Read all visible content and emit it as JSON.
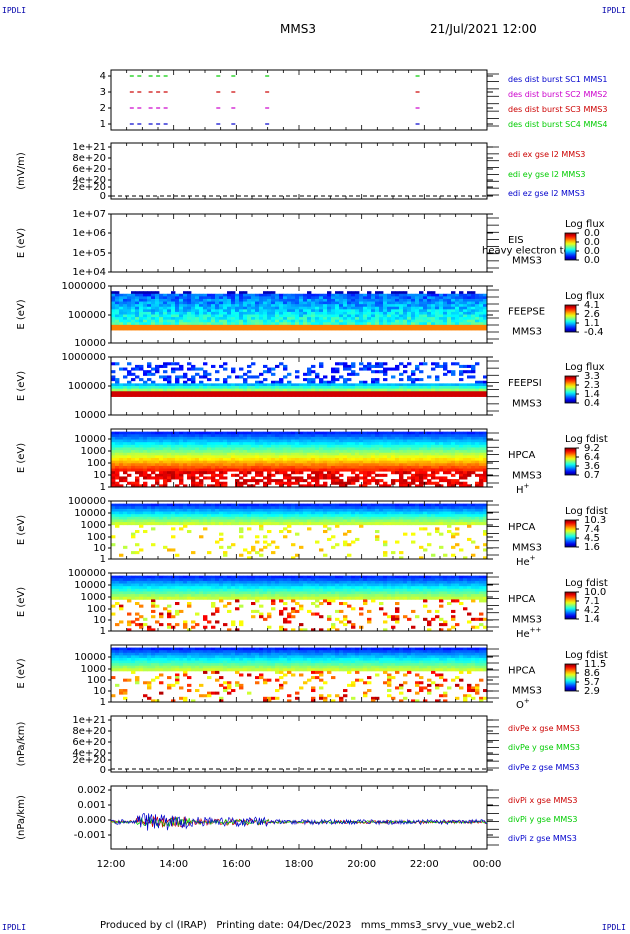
{
  "header": {
    "corner_tl": "IPDLI",
    "corner_tr": "IPDLI",
    "corner_bl": "IPDLI",
    "corner_br": "IPDLI",
    "title": "MMS3",
    "datetime": "21/Jul/2021 12:00"
  },
  "footer": {
    "text": "Produced by cl (IRAP)   Printing date: 04/Dec/2023   mms_mms3_srvy_vue_web2.cl"
  },
  "colors": {
    "red": "#cc0000",
    "green": "#00cc00",
    "blue": "#0000cc",
    "magenta": "#cc00cc",
    "orange_band": "#ff9900"
  },
  "chart_data": {
    "type": "stacked-timeseries",
    "x_ticks": [
      "12:00",
      "14:00",
      "16:00",
      "18:00",
      "20:00",
      "22:00",
      "00:00"
    ],
    "panels": [
      {
        "id": "burst",
        "type": "line",
        "y_ticks": [
          "4",
          "3",
          "2",
          "1"
        ],
        "legend": [
          {
            "label": "des dist burst SC1 MMS1",
            "color": "#0000cc"
          },
          {
            "label": "des dist burst SC2 MMS2",
            "color": "#cc00cc"
          },
          {
            "label": "des dist burst SC3 MMS3",
            "color": "#cc0000"
          },
          {
            "label": "des dist burst SC4 MMS4",
            "color": "#00cc00"
          }
        ]
      },
      {
        "id": "edi",
        "type": "line",
        "ylabel": "(mV/m)",
        "y_ticks": [
          "1e+21",
          "8e+20",
          "6e+20",
          "4e+20",
          "2e+20",
          "0"
        ],
        "legend": [
          {
            "label": "edi ex gse l2 MMS3",
            "color": "#cc0000"
          },
          {
            "label": "edi ey gse l2 MMS3",
            "color": "#00cc00"
          },
          {
            "label": "edi ez gse l2 MMS3",
            "color": "#0000cc"
          }
        ]
      },
      {
        "id": "eis",
        "type": "heatmap",
        "ylabel": "E (eV)",
        "y_ticks": [
          "1e+07",
          "1e+06",
          "1e+05",
          "1e+04"
        ],
        "labels": [
          "EIS",
          "MMS3"
        ],
        "overlay_text": "heavy electron to",
        "cbar_title": "Log flux",
        "cbar_ticks": [
          "0.0",
          "0.0",
          "0.0",
          "0.0"
        ]
      },
      {
        "id": "feepse",
        "type": "heatmap",
        "ylabel": "E (eV)",
        "y_ticks": [
          "1000000",
          "100000",
          "10000"
        ],
        "labels": [
          "FEEPSE",
          "MMS3"
        ],
        "cbar_title": "Log flux",
        "cbar_ticks": [
          "4.1",
          "2.6",
          "1.1",
          "-0.4"
        ]
      },
      {
        "id": "feepsi",
        "type": "heatmap",
        "ylabel": "E (eV)",
        "y_ticks": [
          "1000000",
          "100000",
          "10000"
        ],
        "labels": [
          "FEEPSI",
          "MMS3"
        ],
        "cbar_title": "Log flux",
        "cbar_ticks": [
          "3.3",
          "2.3",
          "1.4",
          "0.4"
        ]
      },
      {
        "id": "hpca-h",
        "type": "heatmap",
        "ylabel": "E (eV)",
        "y_ticks": [
          "10000",
          "1000",
          "100",
          "10",
          "1"
        ],
        "labels": [
          "HPCA",
          "MMS3"
        ],
        "species": "H",
        "species_sup": "+",
        "cbar_title": "Log fdist",
        "cbar_ticks": [
          "9.2",
          "6.4",
          "3.6",
          "0.7"
        ]
      },
      {
        "id": "hpca-he",
        "type": "heatmap",
        "ylabel": "E (eV)",
        "y_ticks": [
          "100000",
          "10000",
          "1000",
          "100",
          "10",
          "1"
        ],
        "labels": [
          "HPCA",
          "MMS3"
        ],
        "species": "He",
        "species_sup": "+",
        "cbar_title": "Log fdist",
        "cbar_ticks": [
          "10.3",
          "7.4",
          "4.5",
          "1.6"
        ]
      },
      {
        "id": "hpca-hepp",
        "type": "heatmap",
        "ylabel": "E (eV)",
        "y_ticks": [
          "100000",
          "10000",
          "1000",
          "100",
          "10",
          "1"
        ],
        "labels": [
          "HPCA",
          "MMS3"
        ],
        "species": "He",
        "species_sup": "++",
        "cbar_title": "Log fdist",
        "cbar_ticks": [
          "10.0",
          "7.1",
          "4.2",
          "1.4"
        ]
      },
      {
        "id": "hpca-o",
        "type": "heatmap",
        "ylabel": "E (eV)",
        "y_ticks": [
          "10000",
          "1000",
          "100",
          "10",
          "1"
        ],
        "labels": [
          "HPCA",
          "MMS3"
        ],
        "species": "O",
        "species_sup": "+",
        "cbar_title": "Log fdist",
        "cbar_ticks": [
          "11.5",
          "8.6",
          "5.7",
          "2.9"
        ]
      },
      {
        "id": "divpe",
        "type": "line",
        "ylabel": "(nPa/km)",
        "y_ticks": [
          "1e+21",
          "8e+20",
          "6e+20",
          "4e+20",
          "2e+20",
          "0"
        ],
        "legend": [
          {
            "label": "divPe x gse MMS3",
            "color": "#cc0000"
          },
          {
            "label": "divPe y gse MMS3",
            "color": "#00cc00"
          },
          {
            "label": "divPe z gse MMS3",
            "color": "#0000cc"
          }
        ]
      },
      {
        "id": "divpi",
        "type": "line",
        "ylabel": "(nPa/km)",
        "y_ticks": [
          "0.002",
          "0.001",
          "0.000",
          "-0.001"
        ],
        "ylim": [
          -0.0015,
          0.002
        ],
        "legend": [
          {
            "label": "divPi x gse MMS3",
            "color": "#cc0000"
          },
          {
            "label": "divPi y gse MMS3",
            "color": "#00cc00"
          },
          {
            "label": "divPi z gse MMS3",
            "color": "#0000cc"
          }
        ]
      }
    ]
  }
}
